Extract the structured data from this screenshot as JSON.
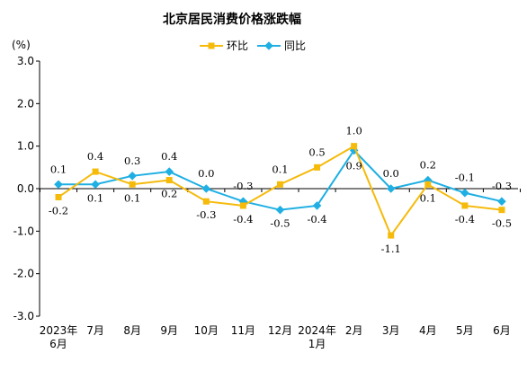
{
  "chart_data": {
    "type": "line",
    "title": "北京居民消费价格涨跌幅",
    "ylabel": "(%)",
    "xlabel": "",
    "ylim": [
      -3.0,
      3.0
    ],
    "yticks": [
      "3.0",
      "2.0",
      "1.0",
      "0.0",
      "-1.0",
      "-2.0",
      "-3.0"
    ],
    "categories": [
      [
        "2023年",
        "6月"
      ],
      [
        "7月"
      ],
      [
        "8月"
      ],
      [
        "9月"
      ],
      [
        "10月"
      ],
      [
        "11月"
      ],
      [
        "12月"
      ],
      [
        "2024年",
        "1月"
      ],
      [
        "2月"
      ],
      [
        "3月"
      ],
      [
        "4月"
      ],
      [
        "5月"
      ],
      [
        "6月"
      ]
    ],
    "legend_position": "top-center",
    "grid": false,
    "series": [
      {
        "name": "环比",
        "color": "#F5BA0A",
        "marker": "square",
        "values": [
          -0.2,
          0.4,
          0.1,
          0.2,
          -0.3,
          -0.4,
          0.1,
          0.5,
          1.0,
          -1.1,
          0.1,
          -0.4,
          -0.5
        ],
        "labels": [
          "-0.2",
          "0.4",
          "0.1",
          "0.2",
          "-0.3",
          "-0.4",
          "0.1",
          "0.5",
          "1.0",
          "-1.1",
          "0.1",
          "-0.4",
          "-0.5"
        ]
      },
      {
        "name": "同比",
        "color": "#1FAFE3",
        "marker": "diamond",
        "values": [
          0.1,
          0.1,
          0.3,
          0.4,
          0.0,
          -0.3,
          -0.5,
          -0.4,
          0.9,
          0.0,
          0.2,
          -0.1,
          -0.3
        ],
        "labels": [
          "0.1",
          "0.1",
          "0.3",
          "0.4",
          "0.0",
          "-0.3",
          "-0.5",
          "-0.4",
          "0.9",
          "0.0",
          "0.2",
          "-0.1",
          "-0.3"
        ]
      }
    ]
  }
}
